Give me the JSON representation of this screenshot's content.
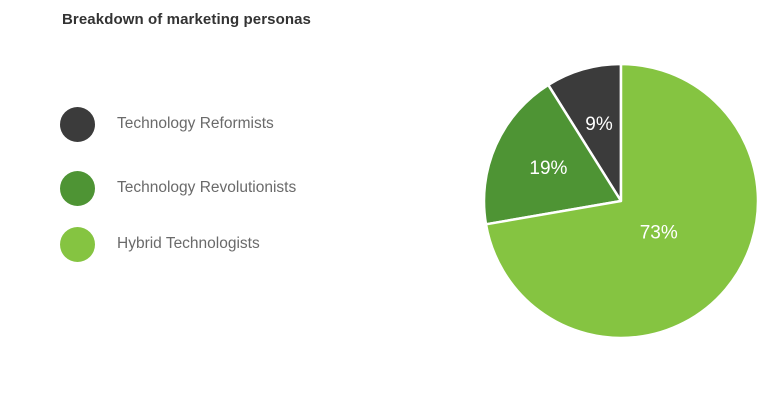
{
  "chart_data": {
    "type": "pie",
    "title": "Breakdown of marketing personas",
    "slices": [
      {
        "name": "Technology Reformists",
        "value": 9,
        "label": "9%",
        "color": "#3b3b3b"
      },
      {
        "name": "Technology Revolutionists",
        "value": 19,
        "label": "19%",
        "color": "#4e9434"
      },
      {
        "name": "Hybrid Technologists",
        "value": 73,
        "label": "73%",
        "color": "#85c441"
      }
    ],
    "legend_placement": "left"
  }
}
